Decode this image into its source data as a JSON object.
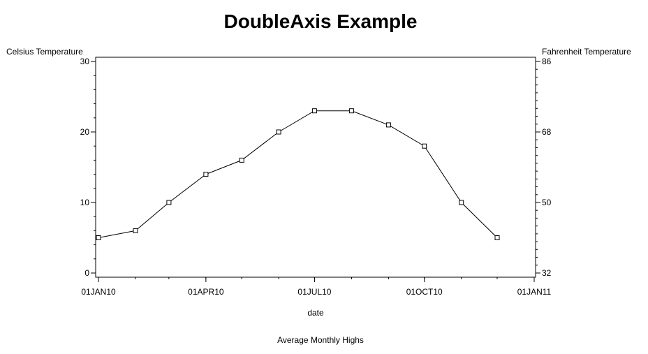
{
  "chart_data": {
    "type": "line",
    "title": "DoubleAxis Example",
    "footnote": "Average Monthly Highs",
    "xlabel": "date",
    "ylabel": "Celsius Temperature",
    "y2label": "Fahrenheit Temperature",
    "x": [
      "2010-01-01",
      "2010-02-01",
      "2010-03-01",
      "2010-04-01",
      "2010-05-01",
      "2010-06-01",
      "2010-07-01",
      "2010-08-01",
      "2010-09-01",
      "2010-10-01",
      "2010-11-01",
      "2010-12-01"
    ],
    "series": [
      {
        "values": [
          5,
          6,
          10,
          14,
          16,
          20,
          23,
          23,
          21,
          18,
          10,
          5
        ]
      }
    ],
    "xlim": [
      "2010-01-01",
      "2011-01-01"
    ],
    "xticks": [
      {
        "date": "2010-01-01",
        "label": "01JAN10"
      },
      {
        "date": "2010-04-01",
        "label": "01APR10"
      },
      {
        "date": "2010-07-01",
        "label": "01JUL10"
      },
      {
        "date": "2010-10-01",
        "label": "01OCT10"
      },
      {
        "date": "2011-01-01",
        "label": "01JAN11"
      }
    ],
    "ylim": [
      0,
      30
    ],
    "yticks": [
      0,
      10,
      20,
      30
    ],
    "y2lim": [
      32,
      86
    ],
    "y2ticks": [
      32,
      50,
      68,
      86
    ],
    "marker": "square",
    "grid": false,
    "line_color": "#000000"
  }
}
